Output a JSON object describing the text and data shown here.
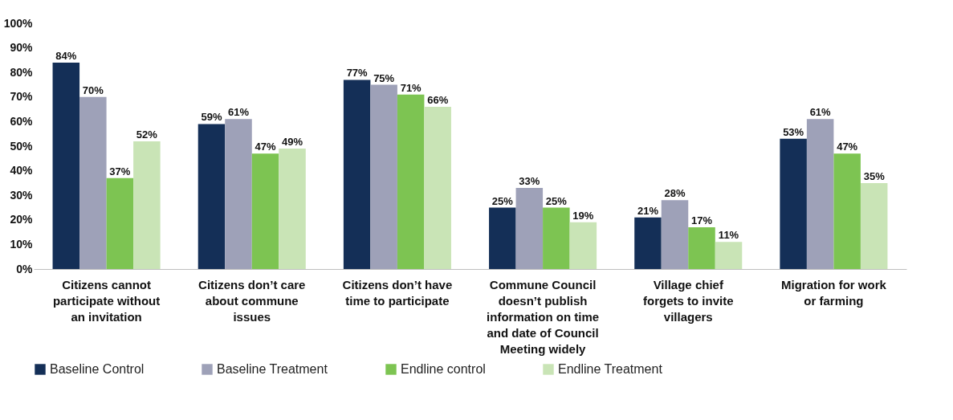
{
  "chart_data": {
    "type": "bar",
    "categories": [
      "Citizens cannot participate without an invitation",
      "Citizens don’t care about commune issues",
      "Citizens don’t have time to participate",
      "Commune Council doesn’t publish information on time and date of Council Meeting widely",
      "Village chief forgets to invite villagers",
      "Migration for work or farming"
    ],
    "series": [
      {
        "name": "Baseline Control",
        "color": "#142f57",
        "values": [
          84,
          59,
          77,
          25,
          21,
          53
        ]
      },
      {
        "name": "Baseline Treatment",
        "color": "#9ea1b8",
        "values": [
          70,
          61,
          75,
          33,
          28,
          61
        ]
      },
      {
        "name": "Endline control",
        "color": "#7dc452",
        "values": [
          37,
          47,
          71,
          25,
          17,
          47
        ]
      },
      {
        "name": "Endline Treatment",
        "color": "#c9e4b6",
        "values": [
          52,
          49,
          66,
          19,
          11,
          35
        ]
      }
    ],
    "ylim": [
      0,
      100
    ],
    "yticks": [
      {
        "value": 0,
        "label": "0%"
      },
      {
        "value": 10,
        "label": "10%"
      },
      {
        "value": 20,
        "label": "20%"
      },
      {
        "value": 30,
        "label": "30%"
      },
      {
        "value": 40,
        "label": "40%"
      },
      {
        "value": 50,
        "label": "50%"
      },
      {
        "value": 60,
        "label": "60%"
      },
      {
        "value": 70,
        "label": "70%"
      },
      {
        "value": 80,
        "label": "80%"
      },
      {
        "value": 90,
        "label": "90%"
      },
      {
        "value": 100,
        "label": "100%"
      }
    ],
    "value_labels": [
      [
        "84%",
        "59%",
        "77%",
        "25%",
        "21%",
        "53%"
      ],
      [
        "70%",
        "61%",
        "75%",
        "33%",
        "28%",
        "61%"
      ],
      [
        "37%",
        "47%",
        "71%",
        "25%",
        "17%",
        "47%"
      ],
      [
        "52%",
        "49%",
        "66%",
        "19%",
        "11%",
        "35%"
      ]
    ],
    "grid": false,
    "legend": "bottom"
  }
}
